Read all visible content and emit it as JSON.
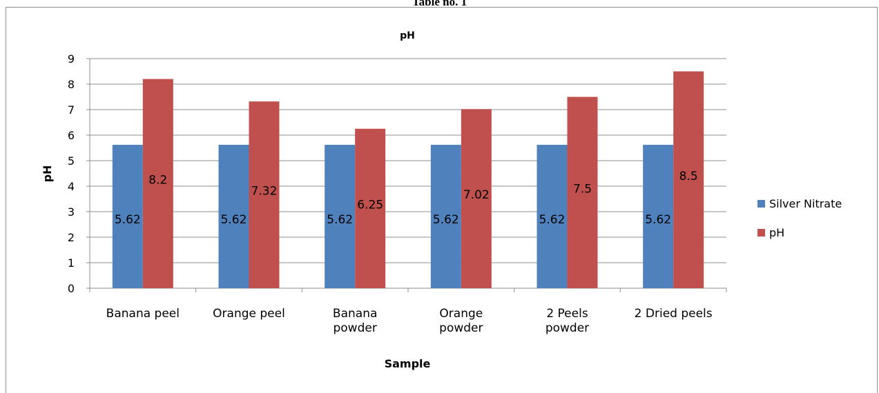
{
  "page": {
    "caption": "Table no. 1"
  },
  "chart_data": {
    "type": "bar",
    "title": "pH",
    "xlabel": "Sample",
    "ylabel": "pH",
    "ylim": [
      0,
      9
    ],
    "yticks": [
      "0",
      "1",
      "2",
      "3",
      "4",
      "5",
      "6",
      "7",
      "8",
      "9"
    ],
    "grid": true,
    "legend_position": "right",
    "categories": [
      [
        "Banana peel"
      ],
      [
        "Orange peel"
      ],
      [
        "Banana",
        "powder"
      ],
      [
        "Orange",
        "powder"
      ],
      [
        "2 Peels",
        "powder"
      ],
      [
        "2 Dried peels"
      ]
    ],
    "series": [
      {
        "name": "Silver Nitrate",
        "color": "#4f81bd",
        "values": [
          5.62,
          5.62,
          5.62,
          5.62,
          5.62,
          5.62
        ],
        "labels": [
          "5.62",
          "5.62",
          "5.62",
          "5.62",
          "5.62",
          "5.62"
        ]
      },
      {
        "name": "pH",
        "color": "#c0504d",
        "values": [
          8.2,
          7.32,
          6.25,
          7.02,
          7.5,
          8.5
        ],
        "labels": [
          "8.2",
          "7.32",
          "6.25",
          "7.02",
          "7.5",
          "8.5"
        ]
      }
    ]
  }
}
